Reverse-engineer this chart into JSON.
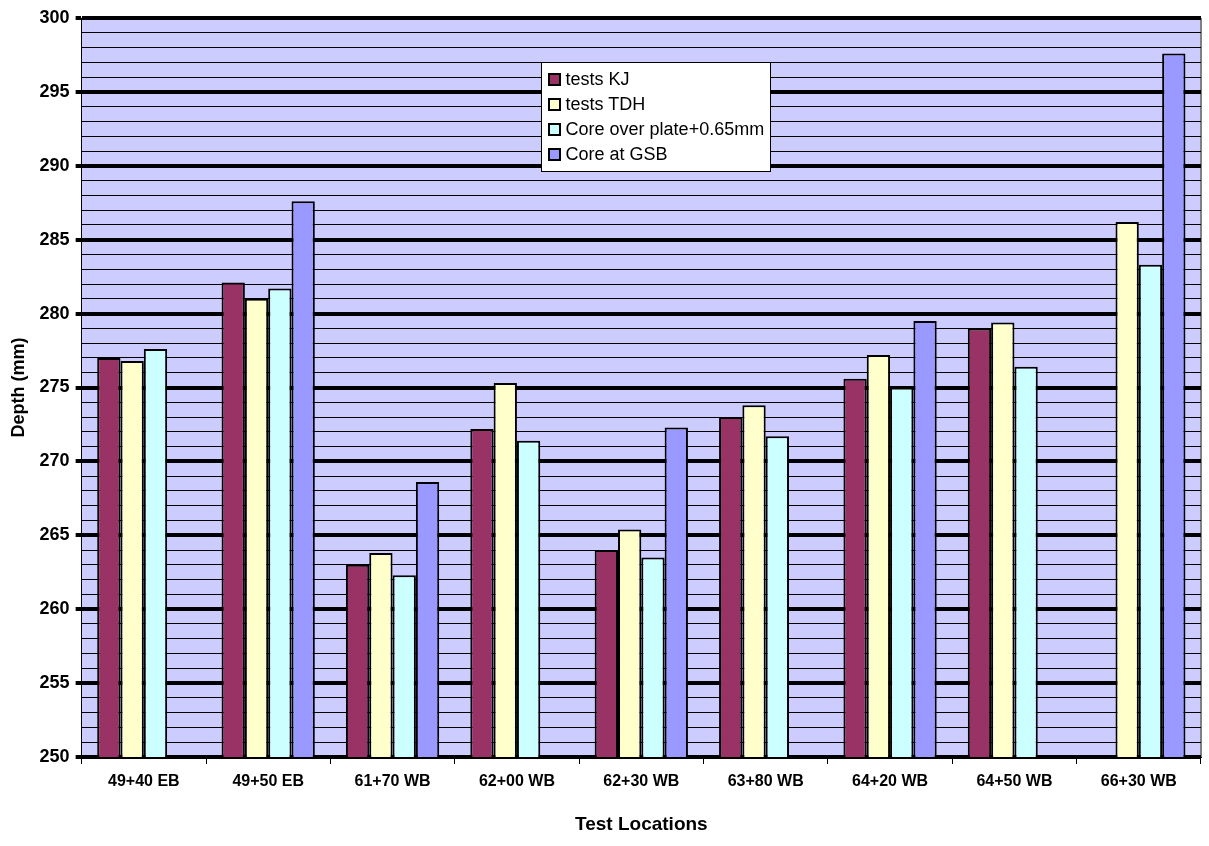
{
  "chart_data": {
    "type": "bar",
    "xlabel": "Test Locations",
    "ylabel": "Depth (mm)",
    "categories": [
      "49+40 EB",
      "49+50 EB",
      "61+70 WB",
      "62+00 WB",
      "62+30 WB",
      "63+80 WB",
      "64+20 WB",
      "64+50 WB",
      "66+30 WB"
    ],
    "series": [
      {
        "name": "tests KJ",
        "color": "#993366",
        "values": [
          277.0,
          282.1,
          263.0,
          272.2,
          264.0,
          273.0,
          275.6,
          279.0,
          null
        ]
      },
      {
        "name": "tests TDH",
        "color": "#ffffcc",
        "values": [
          276.8,
          281.0,
          263.8,
          275.3,
          265.4,
          273.8,
          277.2,
          279.4,
          286.2
        ]
      },
      {
        "name": "Core over plate+0.65mm",
        "color": "#ccffff",
        "values": [
          277.6,
          281.7,
          262.3,
          271.4,
          263.5,
          271.7,
          275.0,
          276.4,
          283.3
        ]
      },
      {
        "name": "Core at GSB",
        "color": "#9999ff",
        "values": [
          null,
          287.6,
          268.6,
          null,
          272.3,
          null,
          279.5,
          null,
          297.6
        ]
      }
    ],
    "ylim": [
      250,
      300
    ],
    "yticks": [
      250,
      {
        "value": 251,
        "label": null
      },
      {
        "value": 252,
        "label": null
      },
      {
        "value": 253,
        "label": null
      },
      {
        "value": 254,
        "label": null
      },
      255,
      {
        "value": 256,
        "label": null
      },
      {
        "value": 257,
        "label": null
      },
      {
        "value": 258,
        "label": null
      },
      {
        "value": 259,
        "label": null
      },
      260,
      {
        "value": 261,
        "label": null
      },
      {
        "value": 262,
        "label": null
      },
      {
        "value": 263,
        "label": null
      },
      {
        "value": 264,
        "label": null
      },
      265,
      {
        "value": 266,
        "label": null
      },
      {
        "value": 267,
        "label": null
      },
      {
        "value": 268,
        "label": null
      },
      {
        "value": 269,
        "label": null
      },
      270,
      {
        "value": 271,
        "label": null
      },
      {
        "value": 272,
        "label": null
      },
      {
        "value": 273,
        "label": null
      },
      {
        "value": 274,
        "label": null
      },
      275,
      {
        "value": 276,
        "label": null
      },
      {
        "value": 277,
        "label": null
      },
      {
        "value": 278,
        "label": null
      },
      {
        "value": 279,
        "label": null
      },
      280,
      {
        "value": 281,
        "label": null
      },
      {
        "value": 282,
        "label": null
      },
      {
        "value": 283,
        "label": null
      },
      {
        "value": 284,
        "label": null
      },
      285,
      {
        "value": 286,
        "label": null
      },
      {
        "value": 287,
        "label": null
      },
      {
        "value": 288,
        "label": null
      },
      {
        "value": 289,
        "label": null
      },
      290,
      {
        "value": 291,
        "label": null
      },
      {
        "value": 292,
        "label": null
      },
      {
        "value": 293,
        "label": null
      },
      {
        "value": 294,
        "label": null
      },
      295,
      {
        "value": 296,
        "label": null
      },
      {
        "value": 297,
        "label": null
      },
      {
        "value": 298,
        "label": null
      },
      {
        "value": 299,
        "label": null
      },
      300
    ],
    "grid": "y",
    "legend": "top"
  }
}
